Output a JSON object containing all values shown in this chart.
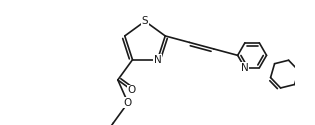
{
  "bg_color": "#ffffff",
  "bond_color": "#1a1a1a",
  "atom_color": "#1a1a1a",
  "line_width": 1.2,
  "font_size": 7.0,
  "fig_width": 3.15,
  "fig_height": 1.25,
  "dpi": 100,
  "xlim": [
    -1.5,
    9.5
  ],
  "ylim": [
    -2.8,
    2.2
  ]
}
